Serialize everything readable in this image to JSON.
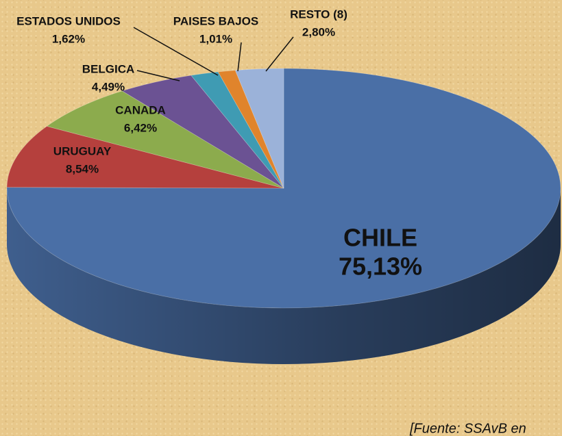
{
  "chart_data": {
    "type": "pie",
    "categories": [
      "CHILE",
      "URUGUAY",
      "CANADA",
      "BELGICA",
      "ESTADOS UNIDOS",
      "PAISES BAJOS",
      "RESTO (8)"
    ],
    "values": [
      75.13,
      8.54,
      6.42,
      4.49,
      1.62,
      1.01,
      2.8
    ],
    "value_labels": [
      "75,13%",
      "8,54%",
      "6,42%",
      "4,49%",
      "1,62%",
      "1,01%",
      "2,80%"
    ],
    "colors": [
      "#4a6fa6",
      "#b5403d",
      "#8cab4d",
      "#6b5293",
      "#3f9bb3",
      "#e0842c",
      "#9bb2d9"
    ],
    "source": "[Fuente: SSAvB en"
  }
}
